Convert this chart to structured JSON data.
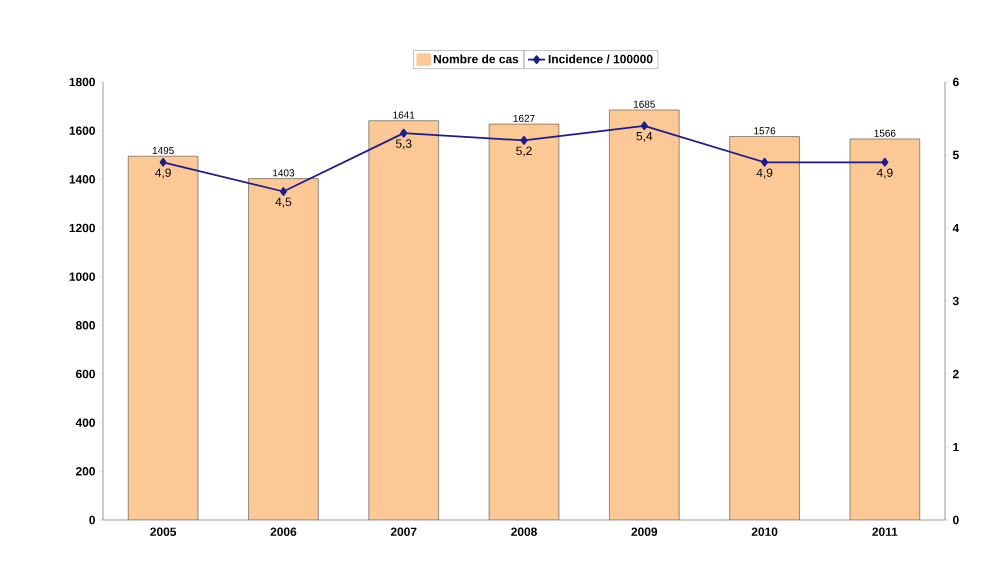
{
  "chart_data": {
    "type": "bar",
    "categories": [
      "2005",
      "2006",
      "2007",
      "2008",
      "2009",
      "2010",
      "2011"
    ],
    "series": [
      {
        "name": "Nombre de cas",
        "type": "bar",
        "color": "#fcc896",
        "values": [
          1495,
          1403,
          1641,
          1627,
          1685,
          1576,
          1566
        ],
        "value_labels": [
          "1495",
          "1403",
          "1641",
          "1627",
          "1685",
          "1576",
          "1566"
        ]
      },
      {
        "name": "Incidence / 100000",
        "type": "line",
        "axis": "y2",
        "marker": "diamond",
        "color": "#1c1c8c",
        "values": [
          4.9,
          4.5,
          5.3,
          5.2,
          5.4,
          4.9,
          4.9
        ],
        "value_labels": [
          "4,9",
          "4,5",
          "5,3",
          "5,2",
          "5,4",
          "4,9",
          "4,9"
        ]
      }
    ],
    "ylim": [
      0,
      1800
    ],
    "yticks": [
      0,
      200,
      400,
      600,
      800,
      1000,
      1200,
      1400,
      1600,
      1800
    ],
    "y2lim": [
      0,
      6
    ],
    "y2ticks": [
      0,
      1,
      2,
      3,
      4,
      5,
      6
    ],
    "legend": "top"
  }
}
